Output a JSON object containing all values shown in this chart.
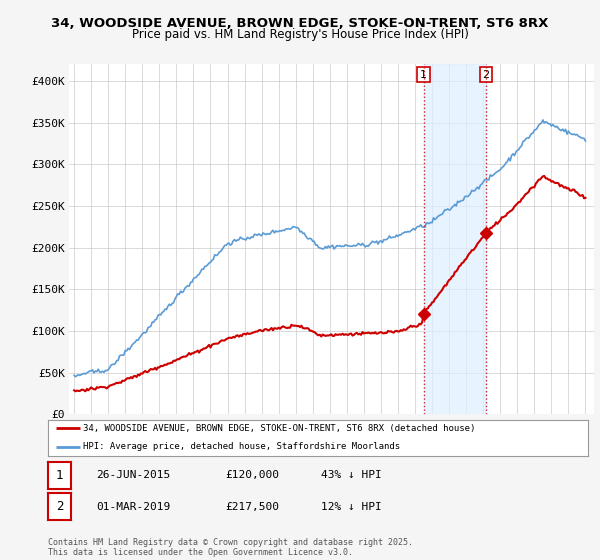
{
  "title_line1": "34, WOODSIDE AVENUE, BROWN EDGE, STOKE-ON-TRENT, ST6 8RX",
  "title_line2": "Price paid vs. HM Land Registry's House Price Index (HPI)",
  "ylim": [
    0,
    420000
  ],
  "yticks": [
    0,
    50000,
    100000,
    150000,
    200000,
    250000,
    300000,
    350000,
    400000
  ],
  "ytick_labels": [
    "£0",
    "£50K",
    "£100K",
    "£150K",
    "£200K",
    "£250K",
    "£300K",
    "£350K",
    "£400K"
  ],
  "x_start_year": 1995,
  "x_end_year": 2025,
  "hpi_color": "#5b9bd5",
  "hpi_fill_color": "#ddeeff",
  "price_color": "#cc0000",
  "sale1_date": "26-JUN-2015",
  "sale1_price": 120000,
  "sale1_label": "43% ↓ HPI",
  "sale1_x": 2015.5,
  "sale2_date": "01-MAR-2019",
  "sale2_price": 217500,
  "sale2_label": "12% ↓ HPI",
  "sale2_x": 2019.17,
  "vline_color": "#cc0000",
  "marker_color": "#cc0000",
  "legend_label1": "34, WOODSIDE AVENUE, BROWN EDGE, STOKE-ON-TRENT, ST6 8RX (detached house)",
  "legend_label2": "HPI: Average price, detached house, Staffordshire Moorlands",
  "footnote": "Contains HM Land Registry data © Crown copyright and database right 2025.\nThis data is licensed under the Open Government Licence v3.0.",
  "background_color": "#f5f5f5",
  "plot_bg_color": "#ffffff",
  "grid_color": "#cccccc"
}
